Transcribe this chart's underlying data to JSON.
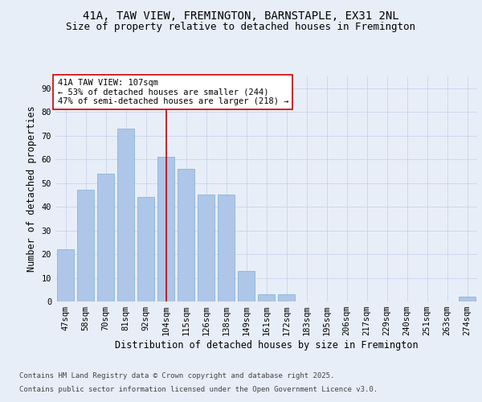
{
  "title_line1": "41A, TAW VIEW, FREMINGTON, BARNSTAPLE, EX31 2NL",
  "title_line2": "Size of property relative to detached houses in Fremington",
  "xlabel": "Distribution of detached houses by size in Fremington",
  "ylabel": "Number of detached properties",
  "categories": [
    "47sqm",
    "58sqm",
    "70sqm",
    "81sqm",
    "92sqm",
    "104sqm",
    "115sqm",
    "126sqm",
    "138sqm",
    "149sqm",
    "161sqm",
    "172sqm",
    "183sqm",
    "195sqm",
    "206sqm",
    "217sqm",
    "229sqm",
    "240sqm",
    "251sqm",
    "263sqm",
    "274sqm"
  ],
  "values": [
    22,
    47,
    54,
    73,
    44,
    61,
    56,
    45,
    45,
    13,
    3,
    3,
    0,
    0,
    0,
    0,
    0,
    0,
    0,
    0,
    2
  ],
  "bar_color": "#aec6e8",
  "bar_edge_color": "#7aaed4",
  "vline_x_index": 5,
  "vline_color": "#cc0000",
  "annotation_text": "41A TAW VIEW: 107sqm\n← 53% of detached houses are smaller (244)\n47% of semi-detached houses are larger (218) →",
  "annotation_box_color": "#ffffff",
  "annotation_border_color": "#cc0000",
  "ylim": [
    0,
    95
  ],
  "yticks": [
    0,
    10,
    20,
    30,
    40,
    50,
    60,
    70,
    80,
    90
  ],
  "grid_color": "#c8d4e8",
  "background_color": "#e8eef8",
  "footer_line1": "Contains HM Land Registry data © Crown copyright and database right 2025.",
  "footer_line2": "Contains public sector information licensed under the Open Government Licence v3.0.",
  "title_fontsize": 10,
  "subtitle_fontsize": 9,
  "axis_label_fontsize": 8.5,
  "tick_fontsize": 7.5,
  "annotation_fontsize": 7.5,
  "footer_fontsize": 6.5
}
